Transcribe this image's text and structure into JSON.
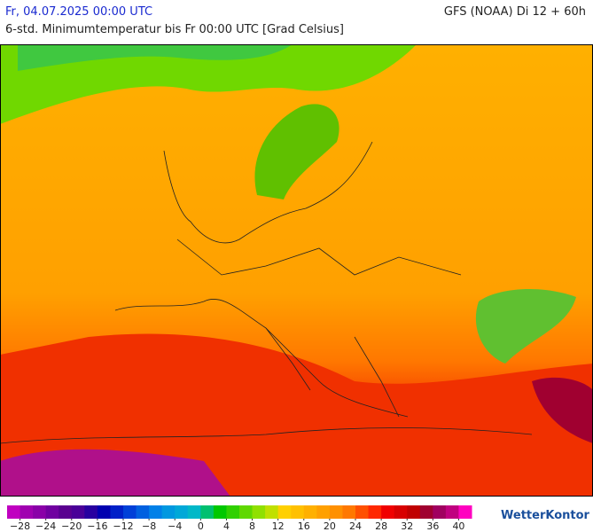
{
  "header": {
    "date": "Fr, 04.07.2025 00:00 UTC",
    "model": "GFS (NOAA) Di 12 + 60h",
    "subtitle": "6-std. Minimumtemperatur bis Fr 00:00 UTC [Grad Celsius]"
  },
  "colorbar": {
    "range": [
      -30,
      42
    ],
    "colors": [
      "#c000c0",
      "#a000b0",
      "#8a00a8",
      "#7000a0",
      "#5a0090",
      "#4a0098",
      "#2800a0",
      "#0000b0",
      "#0020c8",
      "#0040d8",
      "#0060e0",
      "#0080e8",
      "#0098e0",
      "#00a8d8",
      "#00b8c8",
      "#00c070",
      "#00c800",
      "#30d000",
      "#60d800",
      "#90e000",
      "#c0e000",
      "#ffd000",
      "#ffc000",
      "#ffb000",
      "#ffa000",
      "#ff9000",
      "#ff7800",
      "#ff5000",
      "#ff2800",
      "#f00000",
      "#d80000",
      "#c00000",
      "#a00030",
      "#a00060",
      "#c00080",
      "#ff00c0"
    ],
    "ticks": [
      {
        "value": -28,
        "label": "−28"
      },
      {
        "value": -24,
        "label": "−24"
      },
      {
        "value": -20,
        "label": "−20"
      },
      {
        "value": -16,
        "label": "−16"
      },
      {
        "value": -12,
        "label": "−12"
      },
      {
        "value": -8,
        "label": "−8"
      },
      {
        "value": -4,
        "label": "−4"
      },
      0,
      4,
      8,
      12,
      16,
      20,
      24,
      28,
      32,
      36,
      40
    ]
  },
  "logo": "WetterKontor"
}
